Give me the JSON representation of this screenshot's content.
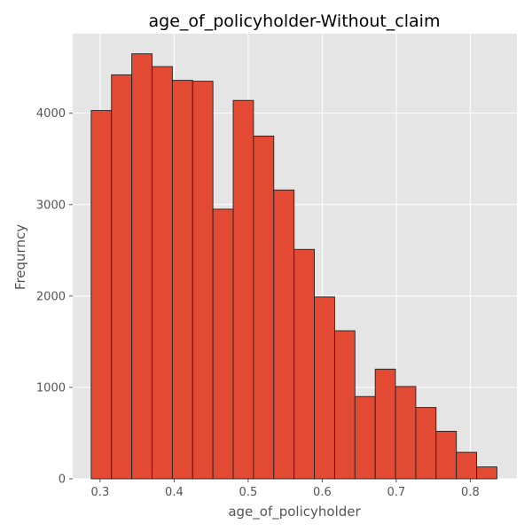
{
  "chart_data": {
    "type": "bar",
    "title": "age_of_policyholder-Without_claim",
    "xlabel": "age_of_policyholder",
    "ylabel": "Frequrncy",
    "xlim": [
      0.263,
      0.863
    ],
    "ylim": [
      0,
      4870
    ],
    "x_ticks": [
      0.3,
      0.4,
      0.5,
      0.6,
      0.7,
      0.8
    ],
    "x_tick_labels": [
      "0.3",
      "0.4",
      "0.5",
      "0.6",
      "0.7",
      "0.8"
    ],
    "y_ticks": [
      0,
      1000,
      2000,
      3000,
      4000
    ],
    "y_tick_labels": [
      "0",
      "1000",
      "2000",
      "3000",
      "4000"
    ],
    "grid": true,
    "style": "ggplot",
    "bar_color": "#E24A33",
    "bar_edge_color": "#222222",
    "background_color": "#E5E5E5",
    "bins": [
      {
        "x0": 0.288,
        "x1": 0.3154,
        "count": 4030
      },
      {
        "x0": 0.3154,
        "x1": 0.3428,
        "count": 4420
      },
      {
        "x0": 0.3428,
        "x1": 0.3702,
        "count": 4650
      },
      {
        "x0": 0.3702,
        "x1": 0.3976,
        "count": 4510
      },
      {
        "x0": 0.3976,
        "x1": 0.425,
        "count": 4360
      },
      {
        "x0": 0.425,
        "x1": 0.4524,
        "count": 4350
      },
      {
        "x0": 0.4524,
        "x1": 0.4798,
        "count": 2950
      },
      {
        "x0": 0.4798,
        "x1": 0.5072,
        "count": 4140
      },
      {
        "x0": 0.5072,
        "x1": 0.5346,
        "count": 3750
      },
      {
        "x0": 0.5346,
        "x1": 0.562,
        "count": 3160
      },
      {
        "x0": 0.562,
        "x1": 0.5894,
        "count": 2510
      },
      {
        "x0": 0.5894,
        "x1": 0.6168,
        "count": 1990
      },
      {
        "x0": 0.6168,
        "x1": 0.6442,
        "count": 1620
      },
      {
        "x0": 0.6442,
        "x1": 0.6716,
        "count": 900
      },
      {
        "x0": 0.6716,
        "x1": 0.699,
        "count": 1200
      },
      {
        "x0": 0.699,
        "x1": 0.7264,
        "count": 1010
      },
      {
        "x0": 0.7264,
        "x1": 0.7538,
        "count": 780
      },
      {
        "x0": 0.7538,
        "x1": 0.7812,
        "count": 520
      },
      {
        "x0": 0.7812,
        "x1": 0.8086,
        "count": 290
      },
      {
        "x0": 0.8086,
        "x1": 0.836,
        "count": 130
      }
    ]
  }
}
